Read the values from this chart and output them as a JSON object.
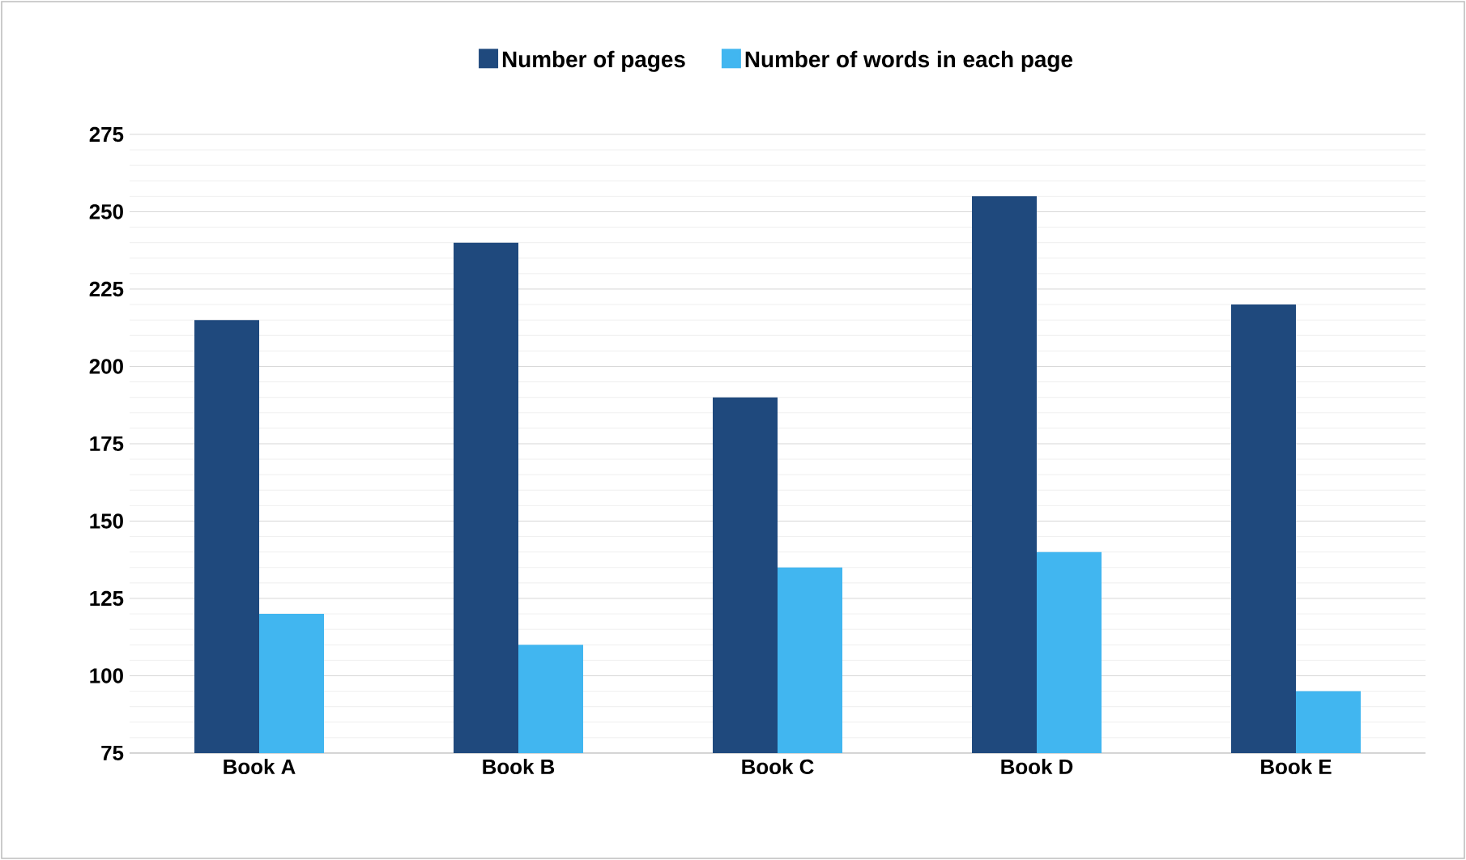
{
  "chart_data": {
    "type": "bar",
    "categories": [
      "Book A",
      "Book B",
      "Book C",
      "Book D",
      "Book E"
    ],
    "series": [
      {
        "name": "Number of pages",
        "color": "#1f497d",
        "values": [
          215,
          240,
          190,
          255,
          220
        ]
      },
      {
        "name": "Number of words in each page",
        "color": "#41b6f0",
        "values": [
          120,
          110,
          135,
          140,
          95
        ]
      }
    ],
    "ylim": [
      75,
      275
    ],
    "yticks": [
      75,
      100,
      125,
      150,
      175,
      200,
      225,
      250,
      275
    ],
    "grid": "y",
    "legend": "top"
  }
}
